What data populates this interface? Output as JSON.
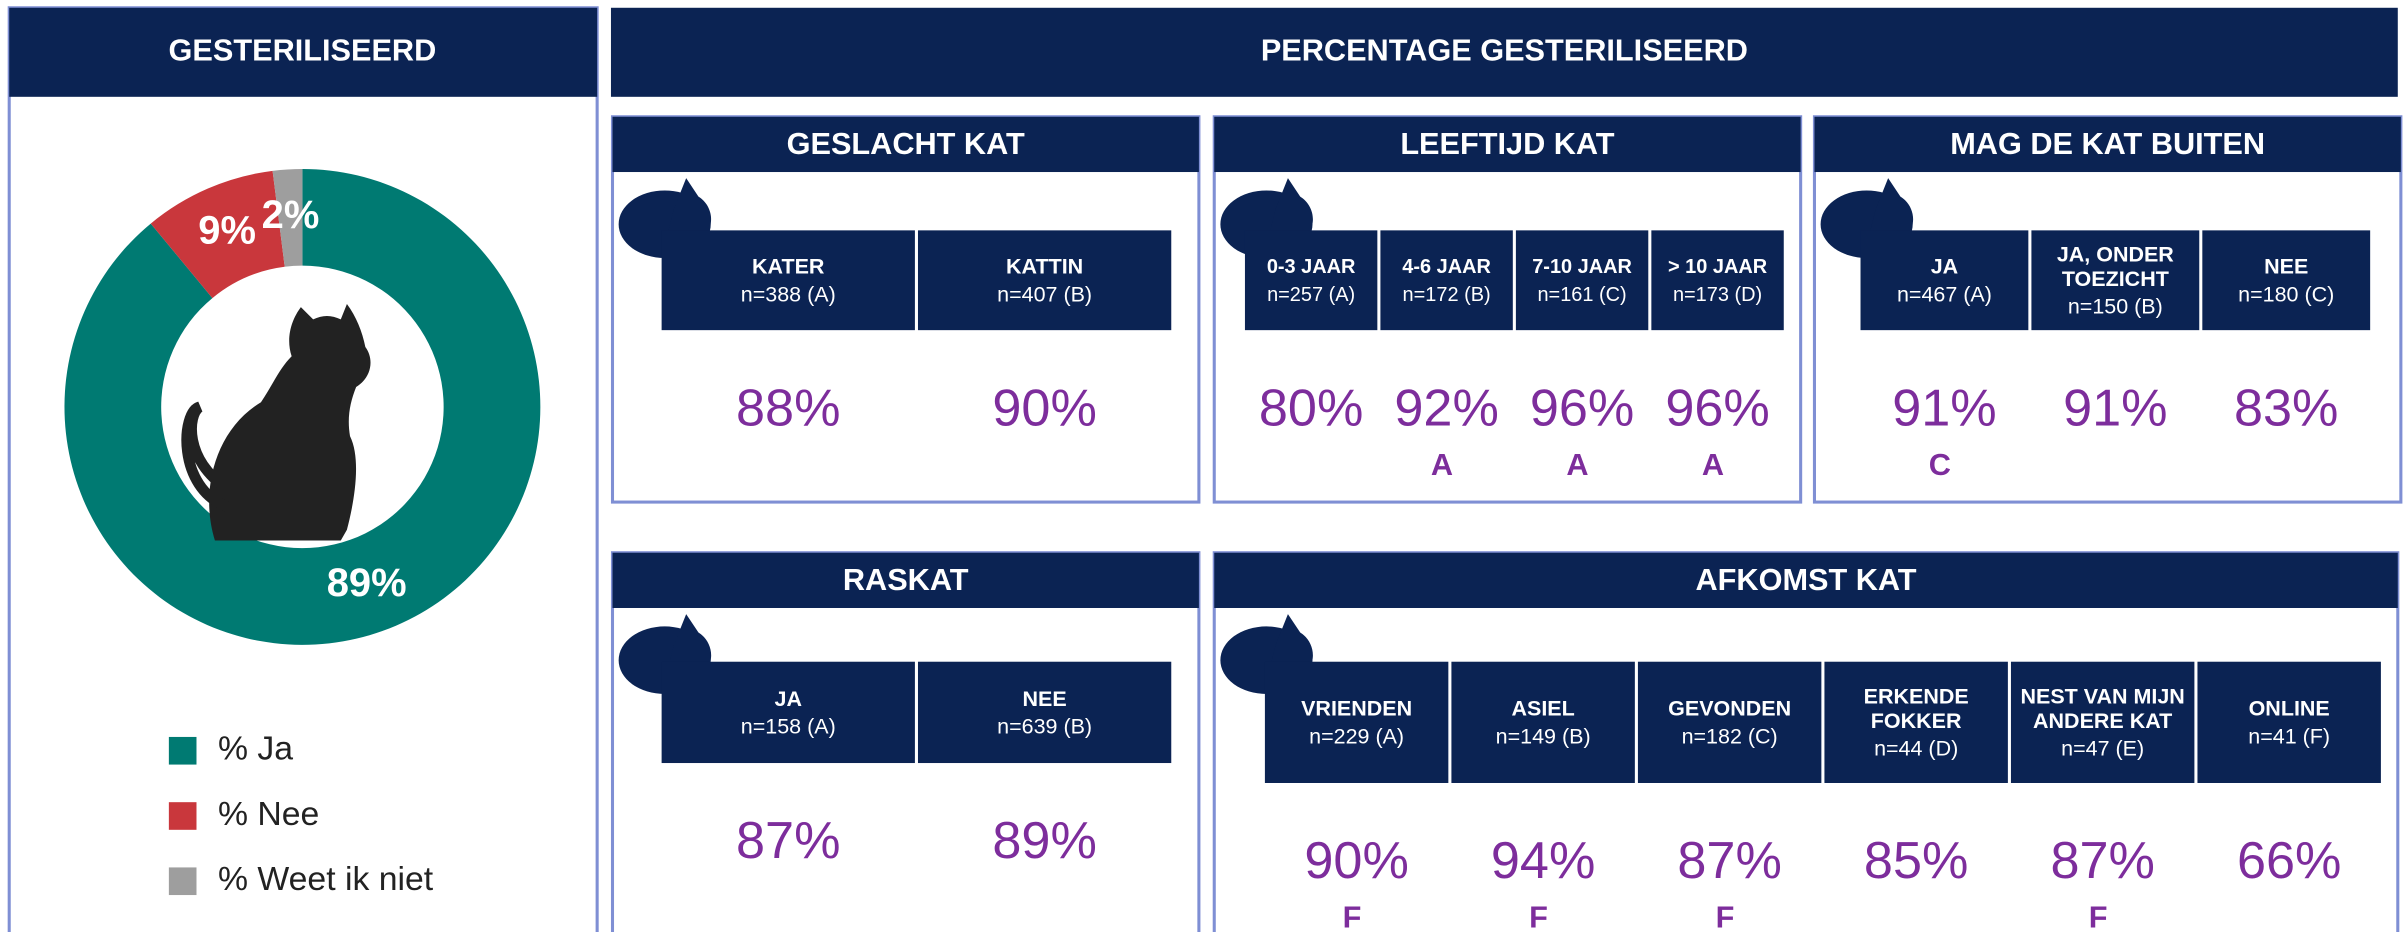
{
  "chart_data": {
    "type": "pie",
    "title": "GESTERILISEERD",
    "categories": [
      "% Ja",
      "% Nee",
      "% Weet ik niet"
    ],
    "values": [
      89,
      9,
      2
    ],
    "value_labels": [
      "89%",
      "9%",
      "2%"
    ],
    "colors": [
      "#007a72",
      "#c9373c",
      "#9e9e9e"
    ],
    "donut": true,
    "legend": "bottom"
  },
  "header": "PERCENTAGE GESTERILISEERD",
  "panels": [
    {
      "title": "GESLACHT KAT",
      "columns": [
        {
          "label": [
            "KATER"
          ],
          "n": "n=388 (A)",
          "value": "88%"
        },
        {
          "label": [
            "KATTIN"
          ],
          "n": "n=407 (B)",
          "value": "90%"
        }
      ]
    },
    {
      "title": "LEEFTIJD KAT",
      "columns": [
        {
          "label": [
            "0-3 JAAR"
          ],
          "n": "n=257  (A)",
          "value": "80%"
        },
        {
          "label": [
            "4-6 JAAR"
          ],
          "n": "n=172  (B)",
          "value": "92%",
          "sig": "A"
        },
        {
          "label": [
            "7-10 JAAR"
          ],
          "n": "n=161 (C)",
          "value": "96%",
          "sig": "A"
        },
        {
          "label": [
            "> 10 JAAR"
          ],
          "n": "n=173 (D)",
          "value": "96%",
          "sig": "A"
        }
      ]
    },
    {
      "title": "MAG DE KAT BUITEN",
      "columns": [
        {
          "label": [
            "JA"
          ],
          "n": "n=467 (A)",
          "value": "91%",
          "sig": "C"
        },
        {
          "label": [
            "JA, ONDER",
            "TOEZICHT"
          ],
          "n": "n=150 (B)",
          "value": "91%"
        },
        {
          "label": [
            "NEE"
          ],
          "n": "n=180 (C)",
          "value": "83%"
        }
      ]
    },
    {
      "title": "RASKAT",
      "columns": [
        {
          "label": [
            "JA"
          ],
          "n": "n=158 (A)",
          "value": "87%"
        },
        {
          "label": [
            "NEE"
          ],
          "n": "n=639 (B)",
          "value": "89%"
        }
      ]
    },
    {
      "title": "AFKOMST KAT",
      "columns": [
        {
          "label": [
            "VRIENDEN"
          ],
          "n": "n=229  (A)",
          "value": "90%",
          "sig": "F"
        },
        {
          "label": [
            "ASIEL"
          ],
          "n": "n=149 (B)",
          "value": "94%",
          "sig": "F"
        },
        {
          "label": [
            "GEVONDEN"
          ],
          "n": "n=182 (C)",
          "value": "87%",
          "sig": "F"
        },
        {
          "label": [
            "ERKENDE",
            "FOKKER"
          ],
          "n": "n=44 (D)",
          "value": "85%"
        },
        {
          "label": [
            "NEST VAN MIJN",
            "ANDERE KAT"
          ],
          "n": "n=47 (E)",
          "value": "87%",
          "sig": "F"
        },
        {
          "label": [
            "ONLINE"
          ],
          "n": "n=41 (F)",
          "value": "66%"
        }
      ]
    }
  ]
}
